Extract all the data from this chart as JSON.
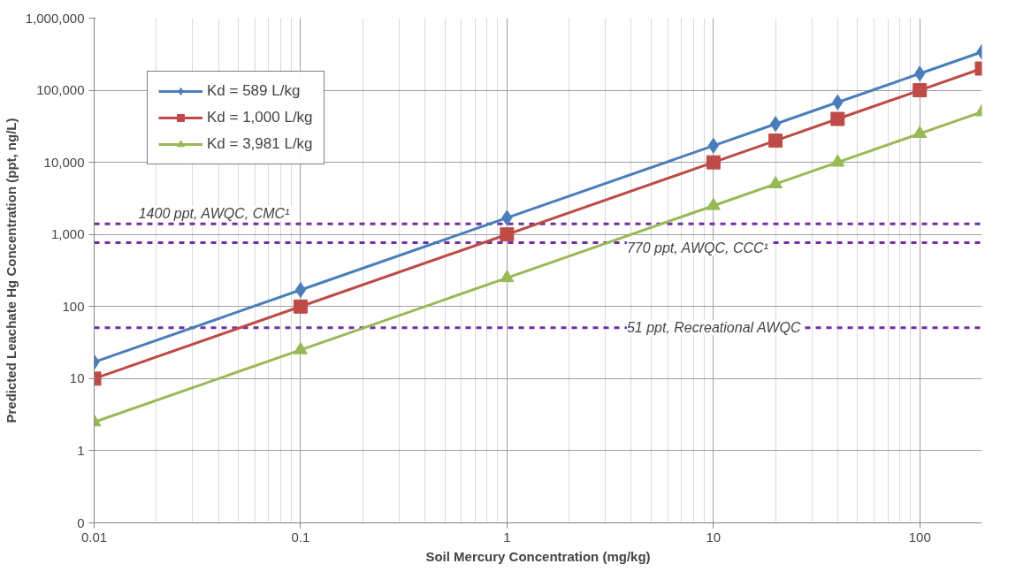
{
  "chart_data": {
    "type": "line",
    "xlabel": "Soil Mercury Concentration (mg/kg)",
    "ylabel": "Predicted Leachate Hg Concentration (ppt, ng/L)",
    "x": [
      0.01,
      0.1,
      1,
      10,
      20,
      40,
      100,
      200
    ],
    "series": [
      {
        "name": "Kd = 589 L/kg",
        "color": "#4a7ebb",
        "marker": "diamond",
        "values": [
          17,
          170,
          1700,
          17000,
          34000,
          68000,
          170000,
          340000
        ]
      },
      {
        "name": "Kd = 1,000 L/kg",
        "color": "#be4b48",
        "marker": "square",
        "values": [
          10,
          100,
          1000,
          10000,
          20000,
          40000,
          100000,
          200000
        ]
      },
      {
        "name": "Kd = 3,981 L/kg",
        "color": "#98b954",
        "marker": "triangle",
        "values": [
          2.5,
          25,
          250,
          2500,
          5000,
          10000,
          25000,
          50000
        ]
      }
    ],
    "log": "xy",
    "xlim": [
      0.01,
      200
    ],
    "ylim": [
      0.1,
      1000000
    ],
    "xticks": [
      0.01,
      0.1,
      1,
      10,
      100
    ],
    "yticks": [
      {
        "value": 0.1,
        "label": "0"
      },
      1,
      10,
      100,
      {
        "value": 1000,
        "label": "1,000"
      },
      {
        "value": 10000,
        "label": "10,000"
      },
      {
        "value": 100000,
        "label": "100,000"
      },
      {
        "value": 1000000,
        "label": "1,000,000"
      }
    ],
    "ref_lines": [
      {
        "axis": "y",
        "value": 1400,
        "label": "1400 ppt,  AWQC, CMC¹",
        "color": "#7030a0",
        "line_style": "dashed"
      },
      {
        "axis": "y",
        "value": 770,
        "label": "770 ppt,  AWQC, CCC¹",
        "color": "#7030a0",
        "line_style": "dashed"
      },
      {
        "axis": "y",
        "value": 51,
        "label": "51 ppt, Recreational AWQC",
        "color": "#7030a0",
        "line_style": "dashed"
      }
    ],
    "grid": true,
    "legend": "top left",
    "line_style": "solid"
  }
}
